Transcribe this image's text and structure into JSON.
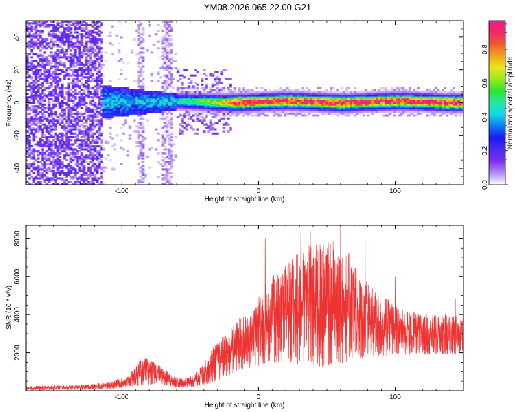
{
  "title": "YM08.2026.065.22.00.G21",
  "chart_data": [
    {
      "type": "heatmap",
      "xlabel": "Height of straight line (km)",
      "ylabel": "Frequency (Hz)",
      "xlim": [
        -170,
        150
      ],
      "ylim": [
        -50,
        50
      ],
      "xticks": [
        -100,
        0,
        100
      ],
      "yticks": [
        -40,
        -20,
        0,
        20,
        40
      ],
      "colorbar": {
        "label": "Normalized spectral amplitude",
        "range": [
          0,
          0.97
        ],
        "ticks": [
          0.0,
          0.2,
          0.4,
          0.6,
          0.8
        ],
        "colors": [
          "#ffffff",
          "#b18cf5",
          "#7b2ff2",
          "#4b2cf0",
          "#1a1af0",
          "#0a7bf5",
          "#16d8e6",
          "#23e8a0",
          "#2ce62c",
          "#9be81c",
          "#e8e81a",
          "#f5a21a",
          "#f05a2a",
          "#f0286e",
          "#f21a8c"
        ]
      },
      "ridge": {
        "description": "narrow high-amplitude line near 0 Hz",
        "start_km": -60,
        "center_hz": 0,
        "peak_amplitude": 0.9
      },
      "noise_region_km": [
        -170,
        -115
      ],
      "transition_region_km": [
        -115,
        -60
      ]
    },
    {
      "type": "line",
      "xlabel": "Height of straight line (km)",
      "ylabel": "SNR (10 * v/v)",
      "xlim": [
        -170,
        150
      ],
      "ylim": [
        0,
        8700
      ],
      "xticks": [
        -100,
        0,
        100
      ],
      "yticks": [
        2000,
        4000,
        6000,
        8000
      ],
      "color": "#ee3333",
      "envelope": {
        "x": [
          -170,
          -130,
          -110,
          -95,
          -85,
          -75,
          -65,
          -55,
          -45,
          -35,
          -25,
          -15,
          -5,
          5,
          15,
          25,
          35,
          45,
          55,
          65,
          75,
          85,
          95,
          105,
          115,
          125,
          135,
          150
        ],
        "min": [
          30,
          40,
          80,
          200,
          300,
          300,
          200,
          150,
          200,
          400,
          700,
          1000,
          1200,
          1400,
          1500,
          1400,
          1300,
          1200,
          1400,
          1500,
          1700,
          1800,
          1800,
          1900,
          1900,
          1900,
          1900,
          1900
        ],
        "max": [
          250,
          300,
          450,
          800,
          1800,
          1500,
          900,
          600,
          1000,
          2200,
          3000,
          3800,
          4300,
          5600,
          6400,
          7000,
          7600,
          7800,
          8000,
          7400,
          6200,
          5300,
          4800,
          4300,
          4100,
          4000,
          4000,
          4000
        ],
        "peak_values": [
          {
            "x": 5,
            "y": 8000
          },
          {
            "x": 31,
            "y": 8300
          },
          {
            "x": 38,
            "y": 8400
          },
          {
            "x": 60,
            "y": 8700
          },
          {
            "x": 78,
            "y": 7900
          },
          {
            "x": 100,
            "y": 6000
          },
          {
            "x": 144,
            "y": 4800
          }
        ]
      }
    }
  ]
}
